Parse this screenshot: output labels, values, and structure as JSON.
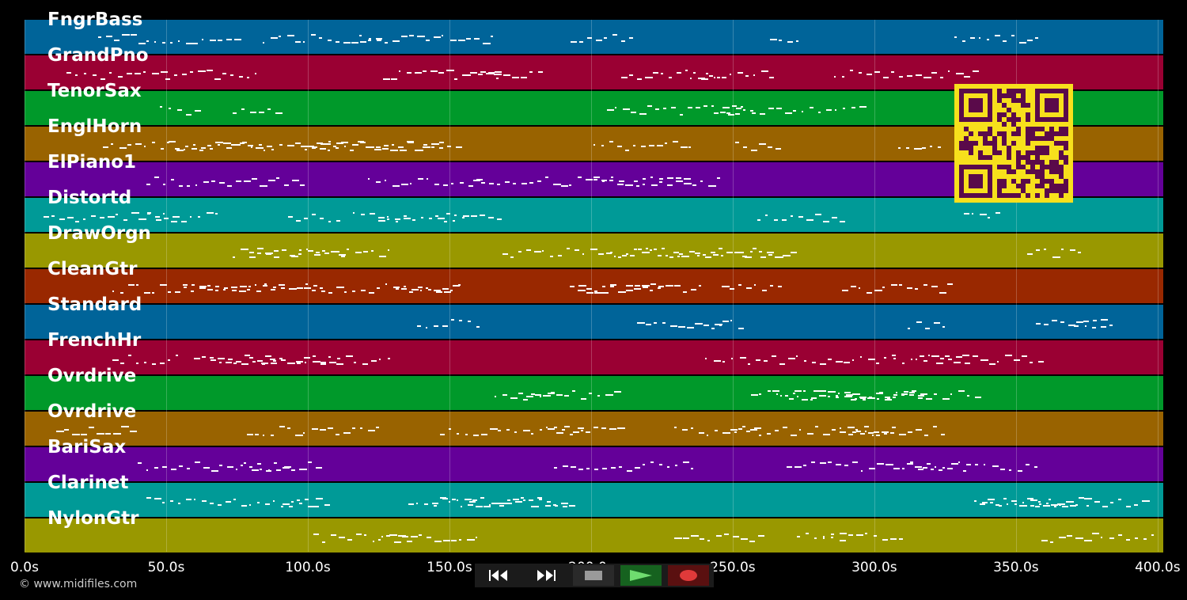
{
  "tracks": [
    {
      "name": "FngrBass",
      "color": "#006499"
    },
    {
      "name": "GrandPno",
      "color": "#9a0033"
    },
    {
      "name": "TenorSax",
      "color": "#00992a"
    },
    {
      "name": "EnglHorn",
      "color": "#996300"
    },
    {
      "name": "ElPiano1",
      "color": "#640099"
    },
    {
      "name": "Distortd",
      "color": "#009a97"
    },
    {
      "name": "DrawOrgn",
      "color": "#999800"
    },
    {
      "name": "CleanGtr",
      "color": "#992800"
    },
    {
      "name": "Standard",
      "color": "#006499"
    },
    {
      "name": "FrenchHr",
      "color": "#9a0033"
    },
    {
      "name": "Ovrdrive",
      "color": "#00992a"
    },
    {
      "name": "Ovrdrive",
      "color": "#996300"
    },
    {
      "name": "BariSax",
      "color": "#640099"
    },
    {
      "name": "Clarinet",
      "color": "#009a97"
    },
    {
      "name": "NylonGtr",
      "color": "#999800"
    }
  ],
  "timeline": {
    "ticks": [
      "0.0s",
      "50.0s",
      "100.0s",
      "150.0s",
      "200.0s",
      "250.0s",
      "300.0s",
      "350.0s",
      "400.0s"
    ],
    "max_seconds": 402
  },
  "controls": {
    "rewind_icon": "rewind-icon",
    "forward_icon": "fast-forward-icon",
    "stop_icon": "stop-icon",
    "play_icon": "play-icon",
    "record_icon": "record-icon"
  },
  "copyright": "© www.midifiles.com",
  "qr_colors": {
    "fg": "#5a0a4a",
    "bg": "#f7e01c"
  }
}
